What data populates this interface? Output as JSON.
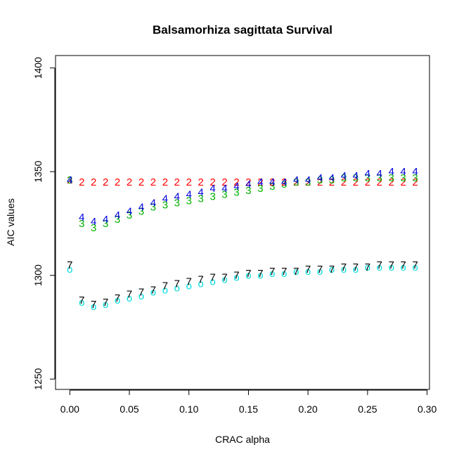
{
  "chart_data": {
    "type": "scatter",
    "title": "Balsamorhiza sagittata Survival",
    "xlabel": "CRAC alpha",
    "ylabel": "AIC values",
    "xlim": [
      -0.012,
      0.302
    ],
    "ylim": [
      1245,
      1406
    ],
    "xticks": [
      "0.00",
      "0.05",
      "0.10",
      "0.15",
      "0.20",
      "0.25",
      "0.30"
    ],
    "xtick_values": [
      0,
      0.05,
      0.1,
      0.15,
      0.2,
      0.25,
      0.3
    ],
    "yticks": [
      "1250",
      "1300",
      "1350",
      "1400"
    ],
    "ytick_values": [
      1250,
      1300,
      1350,
      1400
    ],
    "grid": false,
    "x": [
      0.0,
      0.01,
      0.02,
      0.03,
      0.04,
      0.05,
      0.06,
      0.07,
      0.08,
      0.09,
      0.1,
      0.11,
      0.12,
      0.13,
      0.14,
      0.15,
      0.16,
      0.17,
      0.18,
      0.19,
      0.2,
      0.21,
      0.22,
      0.23,
      0.24,
      0.25,
      0.26,
      0.27,
      0.28,
      0.29
    ],
    "series": [
      {
        "name": "2",
        "marker": "2",
        "color": "#ff0000",
        "values": [
          1346,
          1345,
          1345,
          1345,
          1345,
          1345,
          1345,
          1345,
          1345,
          1345,
          1345,
          1345,
          1345,
          1345,
          1345,
          1345,
          1345,
          1345,
          1345,
          1345,
          1345,
          1345,
          1345,
          1345,
          1345,
          1345,
          1345,
          1345,
          1345,
          1345
        ]
      },
      {
        "name": "3",
        "marker": "3",
        "color": "#00b000",
        "values": [
          1346,
          1325,
          1323,
          1325,
          1327,
          1329,
          1331,
          1333,
          1334,
          1335,
          1336,
          1337,
          1338,
          1339,
          1340,
          1341,
          1342,
          1343,
          1344,
          1345,
          1345,
          1346,
          1346,
          1347,
          1347,
          1347,
          1347,
          1347,
          1347,
          1347
        ]
      },
      {
        "name": "4",
        "marker": "4",
        "color": "#0000dd",
        "values": [
          1346,
          1328,
          1326,
          1327,
          1329,
          1331,
          1333,
          1335,
          1337,
          1338,
          1339,
          1340,
          1342,
          1342,
          1343,
          1344,
          1345,
          1345,
          1345,
          1346,
          1346,
          1347,
          1347,
          1348,
          1348,
          1349,
          1349,
          1350,
          1350,
          1350
        ]
      },
      {
        "name": "o",
        "marker": "o",
        "color": "#00dddd",
        "values": [
          1303,
          1287,
          1285,
          1286,
          1288,
          1289,
          1290,
          1292,
          1293,
          1294,
          1295,
          1296,
          1297,
          1298,
          1299,
          1300,
          1300,
          1301,
          1301,
          1302,
          1302,
          1302,
          1303,
          1303,
          1303,
          1304,
          1304,
          1304,
          1304,
          1304
        ]
      },
      {
        "name": "7",
        "marker": "7",
        "color": "#000000",
        "values": [
          1305,
          1288,
          1286,
          1287,
          1289,
          1291,
          1292,
          1293,
          1295,
          1296,
          1297,
          1298,
          1299,
          1299,
          1300,
          1301,
          1301,
          1302,
          1302,
          1302,
          1303,
          1303,
          1303,
          1304,
          1304,
          1304,
          1305,
          1305,
          1305,
          1305
        ]
      }
    ]
  }
}
